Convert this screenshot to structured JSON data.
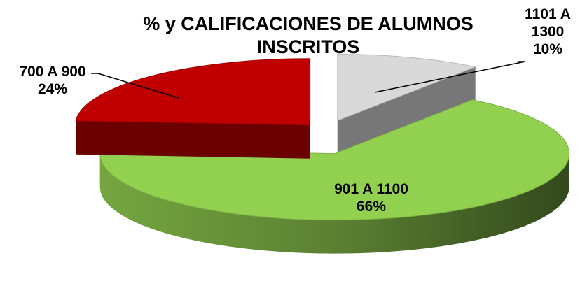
{
  "chart_data": {
    "type": "pie",
    "title": "% y CALIFICACIONES DE ALUMNOS INSCRITOS",
    "categories": [
      "1101 A 1300",
      "901 A 1100",
      "700 A 900"
    ],
    "values": [
      10,
      66,
      24
    ],
    "value_labels": [
      "10%",
      "66%",
      "24%"
    ],
    "colors": [
      "#d9d9d9",
      "#92d050",
      "#c00000"
    ]
  }
}
